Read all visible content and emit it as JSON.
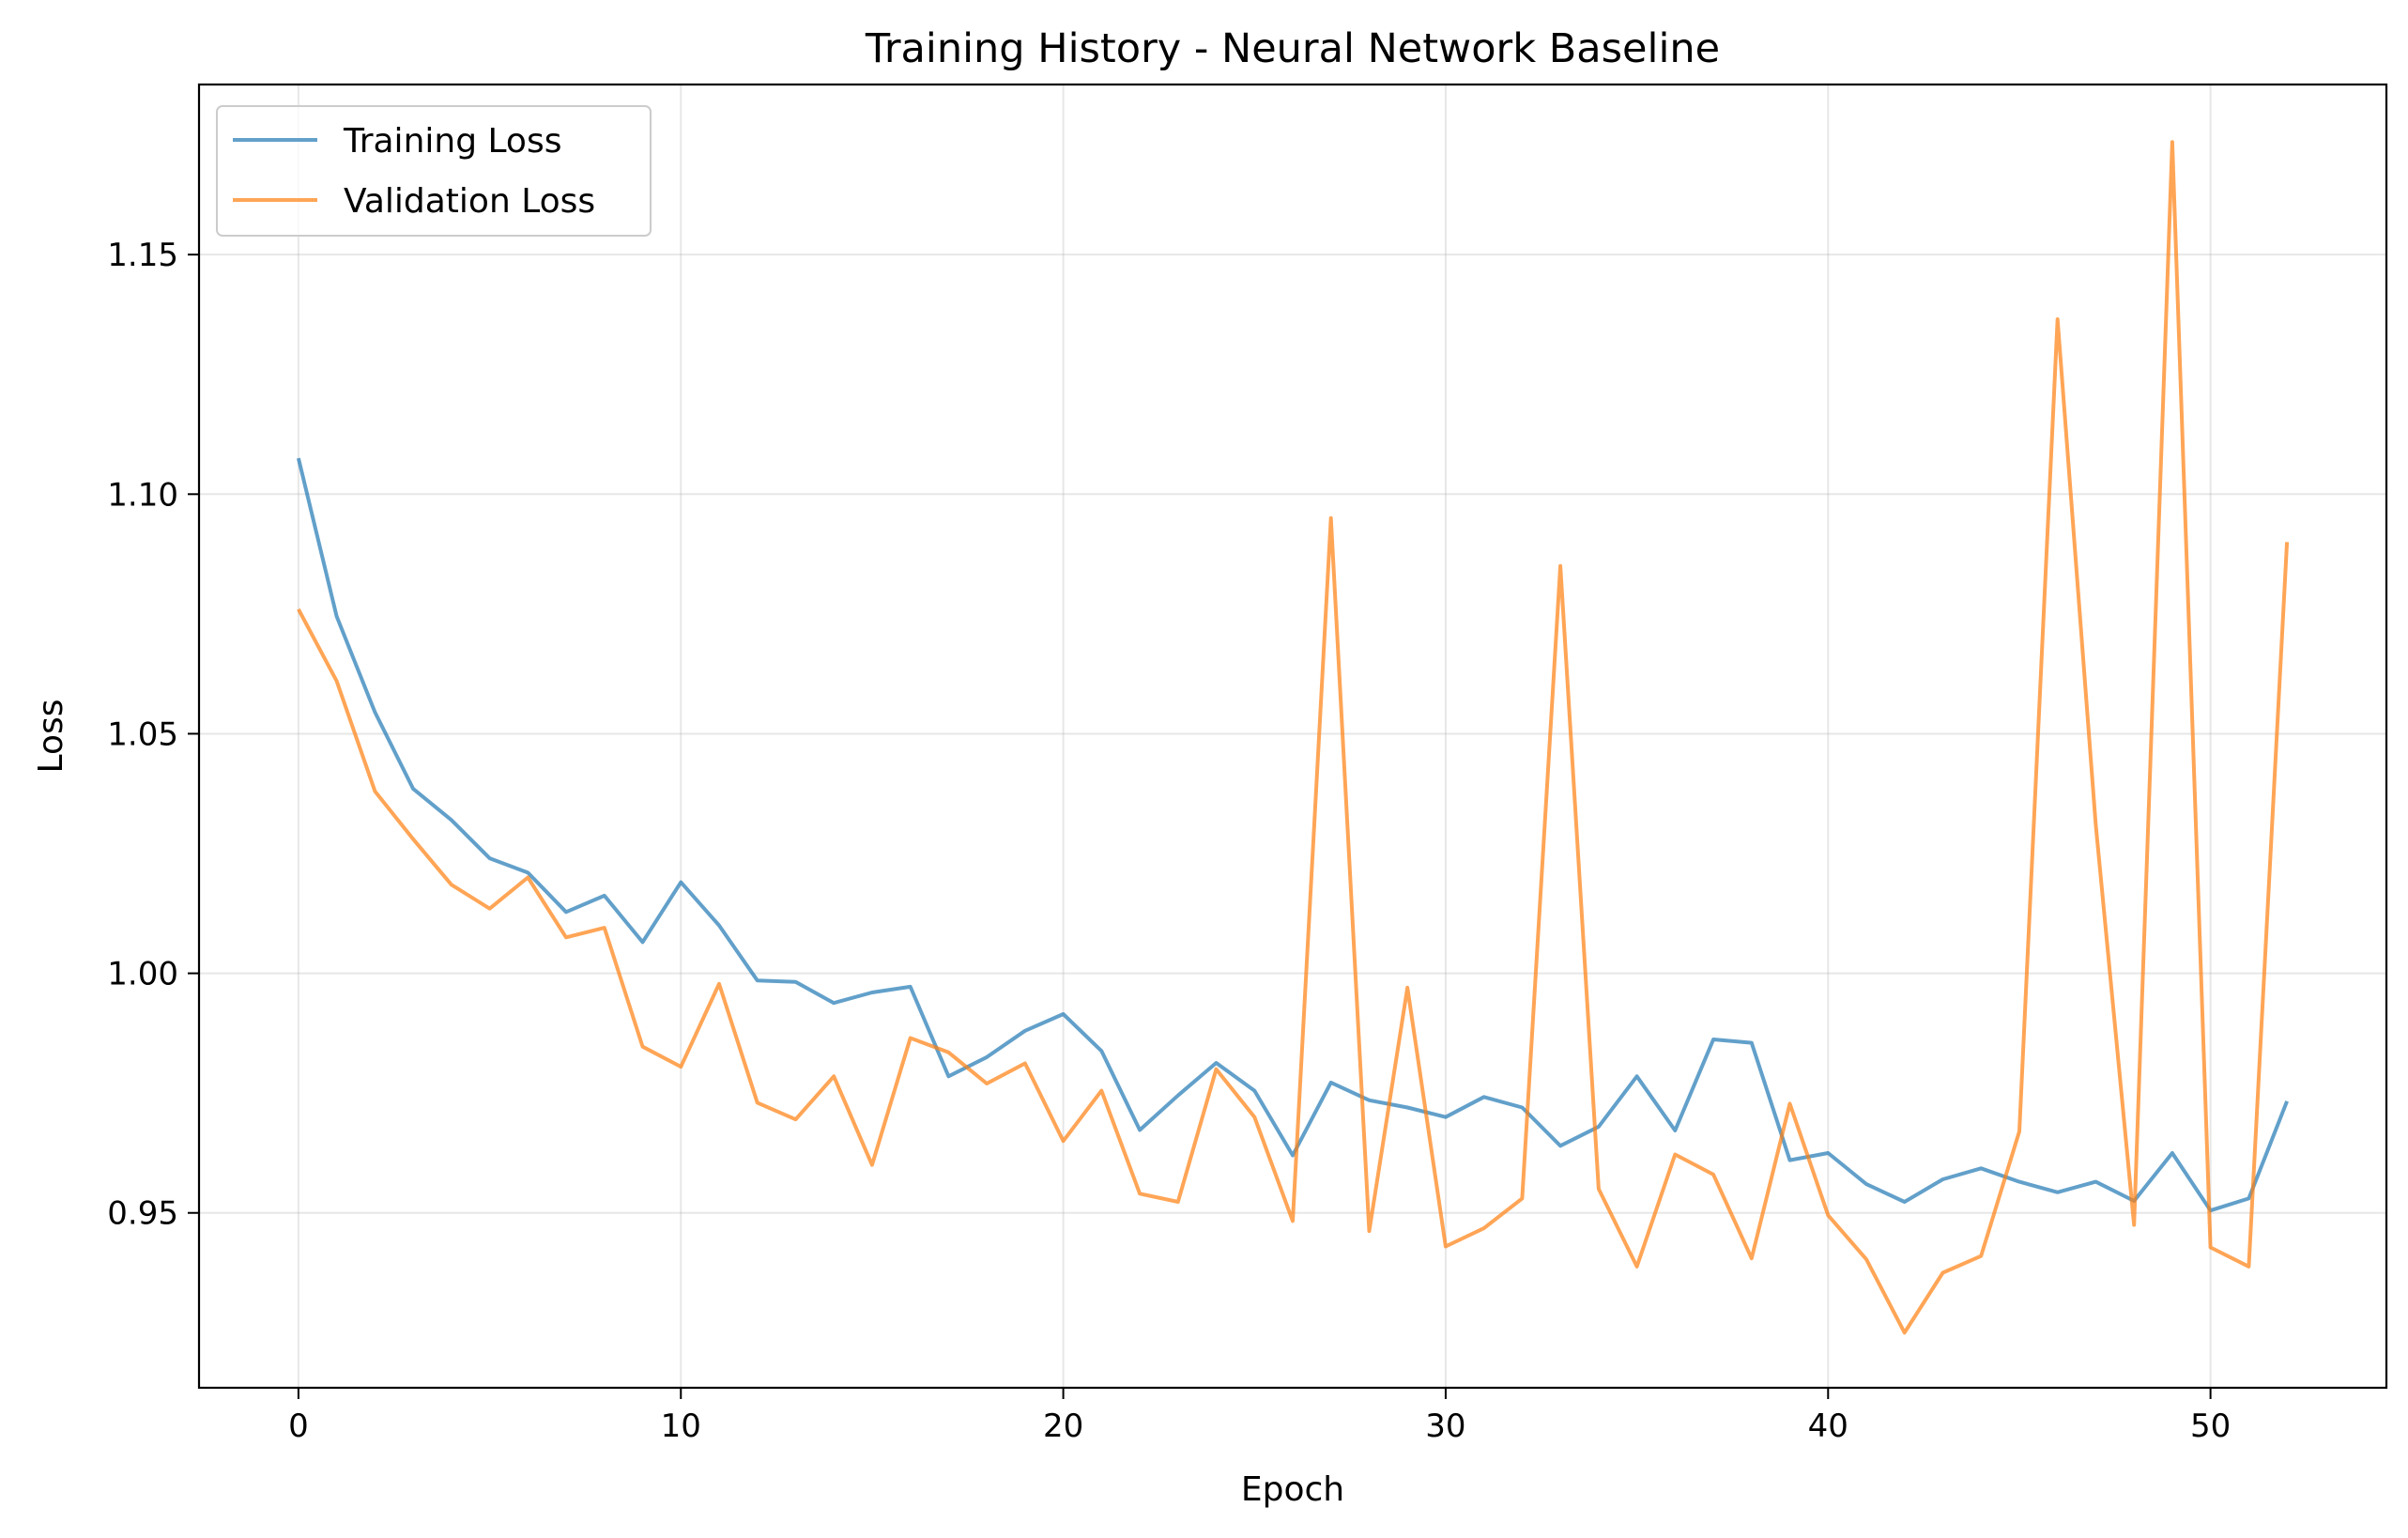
{
  "chart_data": {
    "type": "line",
    "title": "Training History - Neural Network Baseline",
    "xlabel": "Epoch",
    "ylabel": "Loss",
    "xlim": [
      -2.6,
      54.6
    ],
    "ylim": [
      0.9135,
      1.1855
    ],
    "xticks": [
      0,
      10,
      20,
      30,
      40,
      50
    ],
    "yticks": [
      0.95,
      1.0,
      1.05,
      1.1,
      1.15
    ],
    "ytick_labels": [
      "0.95",
      "1.00",
      "1.05",
      "1.10",
      "1.15"
    ],
    "grid": true,
    "legend_position": "top-left",
    "x": [
      0,
      1,
      2,
      3,
      4,
      5,
      6,
      7,
      8,
      9,
      10,
      11,
      12,
      13,
      14,
      15,
      16,
      17,
      18,
      19,
      20,
      21,
      22,
      23,
      24,
      25,
      26,
      27,
      28,
      29,
      30,
      31,
      32,
      33,
      34,
      35,
      36,
      37,
      38,
      39,
      40,
      41,
      42,
      43,
      44,
      45,
      46,
      47,
      48,
      49,
      50,
      51,
      52
    ],
    "series": [
      {
        "name": "Training Loss",
        "color": "#1f77b4",
        "values": [
          1.1075,
          1.0745,
          1.0545,
          1.0385,
          1.032,
          1.024,
          1.021,
          1.0128,
          1.0162,
          1.0065,
          1.019,
          1.01,
          0.9985,
          0.9982,
          0.9938,
          0.996,
          0.9972,
          0.9785,
          0.9825,
          0.988,
          0.9915,
          0.9838,
          0.9673,
          0.9745,
          0.9813,
          0.9755,
          0.962,
          0.9772,
          0.9735,
          0.972,
          0.97,
          0.9742,
          0.972,
          0.964,
          0.968,
          0.9785,
          0.9672,
          0.9862,
          0.9855,
          0.961,
          0.9625,
          0.956,
          0.9523,
          0.957,
          0.9593,
          0.9565,
          0.9543,
          0.9565,
          0.9525,
          0.9625,
          0.9505,
          0.953,
          0.9733
        ]
      },
      {
        "name": "Validation Loss",
        "color": "#ff7f0e",
        "values": [
          1.076,
          1.061,
          1.038,
          1.028,
          1.0185,
          1.0135,
          1.02,
          1.0075,
          1.0095,
          0.9847,
          0.9805,
          0.9978,
          0.973,
          0.9695,
          0.9785,
          0.96,
          0.9865,
          0.9835,
          0.977,
          0.9812,
          0.965,
          0.9755,
          0.954,
          0.9523,
          0.98,
          0.97,
          0.9483,
          1.095,
          0.9462,
          0.997,
          0.943,
          0.9468,
          0.953,
          1.085,
          0.955,
          0.9388,
          0.9622,
          0.958,
          0.9405,
          0.9728,
          0.9495,
          0.9403,
          0.925,
          0.9375,
          0.941,
          0.967,
          1.1365,
          1.031,
          0.9475,
          1.1735,
          0.9428,
          0.9388,
          1.09
        ]
      }
    ]
  }
}
